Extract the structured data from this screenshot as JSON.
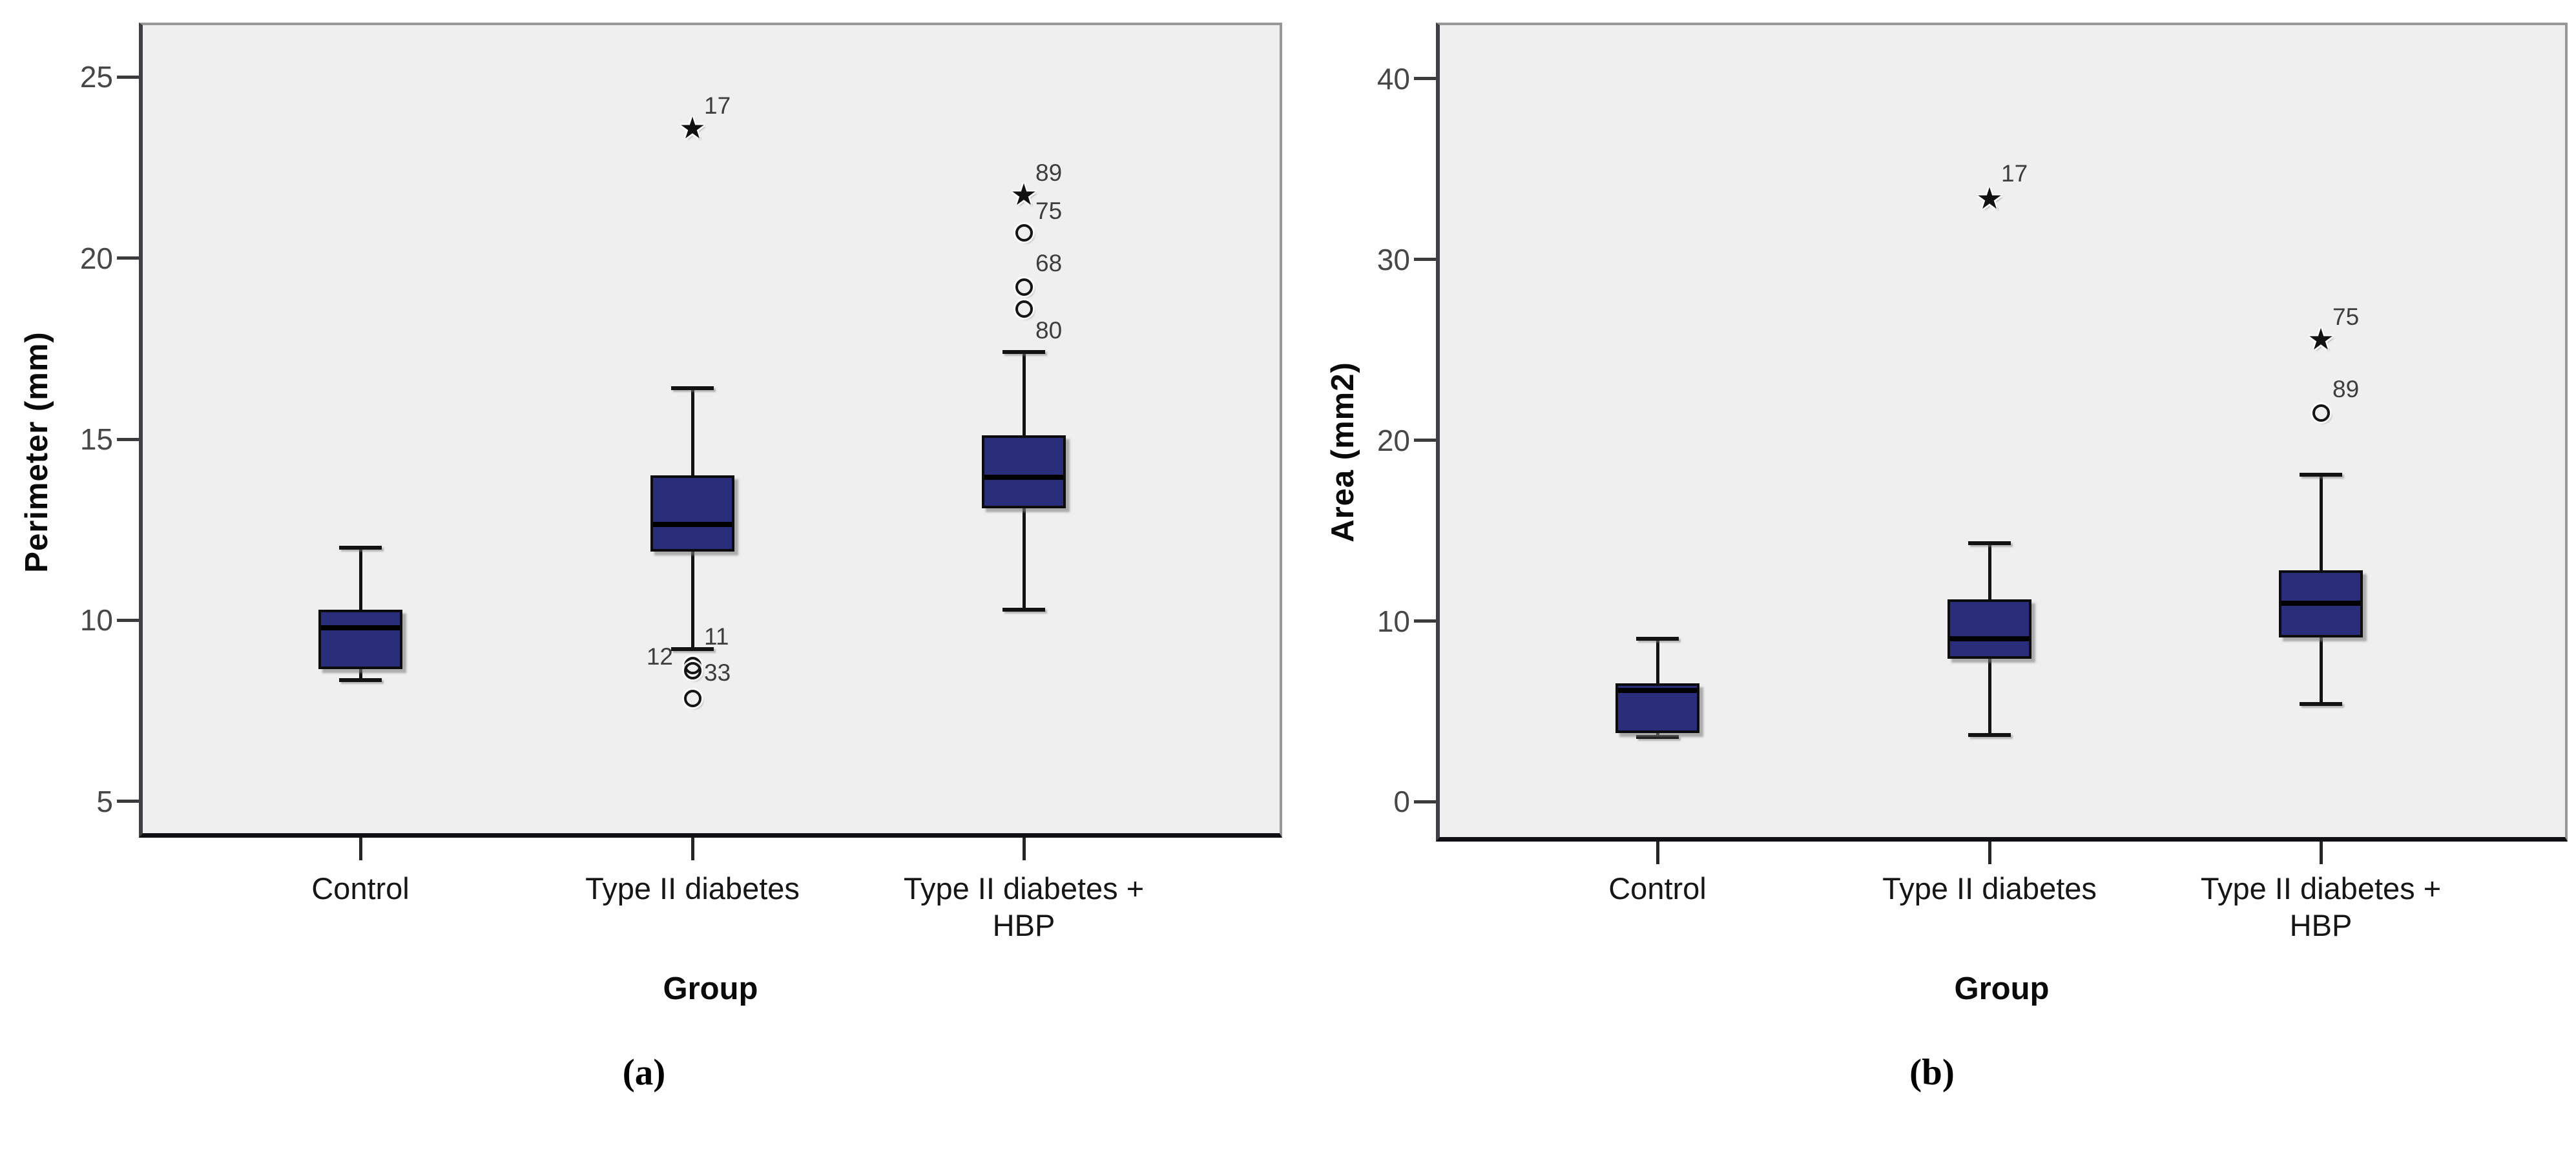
{
  "colors": {
    "box_fill": "#2a2d79",
    "panel_background": "#efeff0",
    "ink": "#121212",
    "tick_text": "#474747"
  },
  "symbols": {
    "extreme_marker": "★",
    "outlier_marker": "○"
  },
  "chart_data": [
    {
      "type": "box",
      "panel": "a",
      "caption": "(a)",
      "xlabel": "Group",
      "ylabel": "Perimeter (mm)",
      "ylim": [
        4.0,
        26.5
      ],
      "yticks": [
        25,
        20,
        15,
        10,
        5
      ],
      "grid": false,
      "categories": [
        "Control",
        "Type II diabetes",
        "Type II diabetes + HBP"
      ],
      "category_label_lines": [
        [
          "Control"
        ],
        [
          "Type II diabetes"
        ],
        [
          "Type II diabetes +",
          "HBP"
        ]
      ],
      "boxes": [
        {
          "category": "Control",
          "whisker_min": 8.35,
          "q1": 8.65,
          "median": 9.8,
          "q3": 10.3,
          "whisker_max": 12.0,
          "outliers": [],
          "extremes": [],
          "point_labels": []
        },
        {
          "category": "Type II diabetes",
          "whisker_min": 9.2,
          "q1": 11.9,
          "median": 12.65,
          "q3": 14.0,
          "whisker_max": 16.4,
          "extremes": [
            23.6
          ],
          "outliers": [
            8.75,
            8.6,
            7.85
          ],
          "point_labels": [
            {
              "text": "17",
              "value": 24.2,
              "side": "right"
            },
            {
              "text": "11",
              "value": 9.55,
              "side": "right"
            },
            {
              "text": "12",
              "value": 9.0,
              "side": "left"
            },
            {
              "text": "33",
              "value": 8.55,
              "side": "right"
            }
          ]
        },
        {
          "category": "Type II diabetes + HBP",
          "whisker_min": 10.3,
          "q1": 13.1,
          "median": 13.95,
          "q3": 15.1,
          "whisker_max": 17.4,
          "extremes": [
            21.75
          ],
          "outliers": [
            20.7,
            19.2,
            18.6
          ],
          "point_labels": [
            {
              "text": "89",
              "value": 22.35,
              "side": "right"
            },
            {
              "text": "75",
              "value": 21.3,
              "side": "right"
            },
            {
              "text": "68",
              "value": 19.85,
              "side": "right"
            },
            {
              "text": "80",
              "value": 18.0,
              "side": "right"
            }
          ]
        }
      ]
    },
    {
      "type": "box",
      "panel": "b",
      "caption": "(b)",
      "xlabel": "Group",
      "ylabel": "Area (mm2)",
      "ylim": [
        -2.2,
        43.1
      ],
      "yticks": [
        40,
        30,
        20,
        10,
        0
      ],
      "grid": false,
      "categories": [
        "Control",
        "Type II diabetes",
        "Type II diabetes + HBP"
      ],
      "category_label_lines": [
        [
          "Control"
        ],
        [
          "Type II diabetes"
        ],
        [
          "Type II diabetes +",
          "HBP"
        ]
      ],
      "boxes": [
        {
          "category": "Control",
          "whisker_min": 3.6,
          "q1": 3.8,
          "median": 6.15,
          "q3": 6.55,
          "whisker_max": 9.0,
          "outliers": [],
          "extremes": [],
          "point_labels": []
        },
        {
          "category": "Type II diabetes",
          "whisker_min": 3.7,
          "q1": 7.9,
          "median": 9.0,
          "q3": 11.2,
          "whisker_max": 14.3,
          "extremes": [
            33.4
          ],
          "outliers": [],
          "point_labels": [
            {
              "text": "17",
              "value": 34.75,
              "side": "right"
            }
          ]
        },
        {
          "category": "Type II diabetes + HBP",
          "whisker_min": 5.4,
          "q1": 9.1,
          "median": 11.0,
          "q3": 12.8,
          "whisker_max": 18.1,
          "extremes": [
            25.6
          ],
          "outliers": [
            21.5
          ],
          "point_labels": [
            {
              "text": "75",
              "value": 26.8,
              "side": "right"
            },
            {
              "text": "89",
              "value": 22.8,
              "side": "right"
            }
          ]
        }
      ]
    }
  ]
}
